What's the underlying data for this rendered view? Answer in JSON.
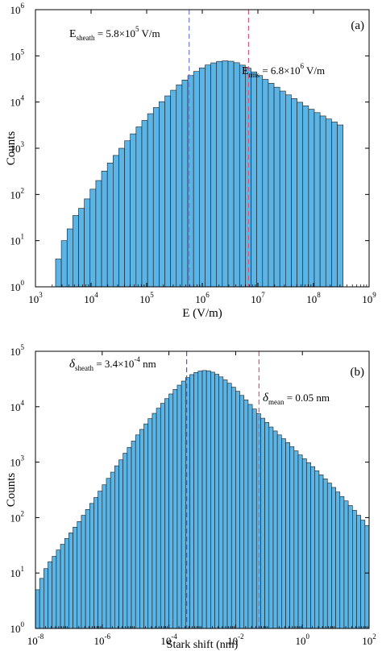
{
  "chart_data": [
    {
      "type": "bar",
      "panel_label": "(a)",
      "xlabel": "E (V/m)",
      "ylabel": "Counts",
      "xscale": "log",
      "yscale": "log",
      "xlim": [
        1000,
        1000000000
      ],
      "ylim": [
        1,
        1000000
      ],
      "grid": false,
      "bar_color": "#5AB4E5",
      "x_ticks": [
        {
          "base": "10",
          "exp": "3"
        },
        {
          "base": "10",
          "exp": "4"
        },
        {
          "base": "10",
          "exp": "5"
        },
        {
          "base": "10",
          "exp": "6"
        },
        {
          "base": "10",
          "exp": "7"
        },
        {
          "base": "10",
          "exp": "8"
        },
        {
          "base": "10",
          "exp": "9"
        }
      ],
      "y_ticks": [
        {
          "base": "10",
          "exp": "0"
        },
        {
          "base": "10",
          "exp": "1"
        },
        {
          "base": "10",
          "exp": "2"
        },
        {
          "base": "10",
          "exp": "3"
        },
        {
          "base": "10",
          "exp": "4"
        },
        {
          "base": "10",
          "exp": "5"
        },
        {
          "base": "10",
          "exp": "6"
        }
      ],
      "bins": {
        "x_start": 2300,
        "x_end": 340000000,
        "count": 50
      },
      "values": [
        4,
        10,
        18,
        35,
        50,
        80,
        130,
        200,
        320,
        480,
        700,
        1000,
        1450,
        2050,
        2900,
        4000,
        5600,
        7600,
        10200,
        13600,
        18000,
        23500,
        30000,
        37500,
        46000,
        55000,
        63500,
        70500,
        76000,
        78000,
        76500,
        71000,
        63000,
        54000,
        45000,
        37500,
        31000,
        25500,
        21000,
        17300,
        14300,
        11900,
        9900,
        8300,
        7000,
        5900,
        5000,
        4300,
        3700,
        3200
      ],
      "annotations": [
        {
          "name": "E-sheath-line",
          "x": 580000,
          "color": "#6A7FE0",
          "label_main": "E",
          "label_sub": "sheath",
          "label_rest": " = 5.8×10",
          "label_sup": "5",
          "label_unit": " V/m"
        },
        {
          "name": "E-rms-line",
          "x": 6800000,
          "color": "#D9557E",
          "label_main": "E",
          "label_sub": "rms",
          "label_rest": " = 6.8×10",
          "label_sup": "6",
          "label_unit": " V/m"
        }
      ]
    },
    {
      "type": "bar",
      "panel_label": "(b)",
      "xlabel": "Stark shift (nm)",
      "ylabel": "Counts",
      "xscale": "log",
      "yscale": "log",
      "xlim": [
        1e-08,
        100
      ],
      "ylim": [
        1,
        100000
      ],
      "grid": false,
      "bar_color": "#5AB4E5",
      "x_ticks": [
        {
          "base": "10",
          "exp": "-8"
        },
        {
          "base": "10",
          "exp": "-6"
        },
        {
          "base": "10",
          "exp": "-4"
        },
        {
          "base": "10",
          "exp": "-2"
        },
        {
          "base": "10",
          "exp": "0"
        },
        {
          "base": "10",
          "exp": "2"
        }
      ],
      "y_ticks": [
        {
          "base": "10",
          "exp": "0"
        },
        {
          "base": "10",
          "exp": "1"
        },
        {
          "base": "10",
          "exp": "2"
        },
        {
          "base": "10",
          "exp": "3"
        },
        {
          "base": "10",
          "exp": "4"
        },
        {
          "base": "10",
          "exp": "5"
        }
      ],
      "bins": {
        "x_start": 1e-08,
        "x_end": 100,
        "count": 80
      },
      "values": [
        5,
        8,
        12,
        16,
        20,
        26,
        33,
        42,
        53,
        67,
        85,
        110,
        140,
        180,
        230,
        300,
        390,
        510,
        660,
        860,
        1100,
        1450,
        1850,
        2400,
        3100,
        3900,
        4900,
        6100,
        7600,
        9400,
        11500,
        14000,
        17000,
        20500,
        24500,
        29000,
        33500,
        38000,
        41500,
        44000,
        45000,
        44500,
        42000,
        38500,
        34500,
        30500,
        26500,
        22500,
        19000,
        16000,
        13300,
        11000,
        9100,
        7500,
        6200,
        5200,
        4300,
        3650,
        3100,
        2650,
        2250,
        1900,
        1600,
        1350,
        1150,
        980,
        830,
        700,
        590,
        500,
        420,
        350,
        290,
        240,
        200,
        165,
        135,
        110,
        90,
        72
      ],
      "annotations": [
        {
          "name": "delta-sheath-line",
          "x": 0.00034,
          "color": "#3F5FE0",
          "label_main": "δ",
          "label_sub": "sheath",
          "label_rest": " = 3.4×10",
          "label_sup": "-4",
          "label_unit": " nm"
        },
        {
          "name": "delta-mean-line",
          "x": 0.05,
          "color": "#D9557E",
          "label_main": "δ",
          "label_sub": "mean",
          "label_rest": " = 0.05 nm",
          "label_sup": "",
          "label_unit": ""
        }
      ]
    }
  ]
}
